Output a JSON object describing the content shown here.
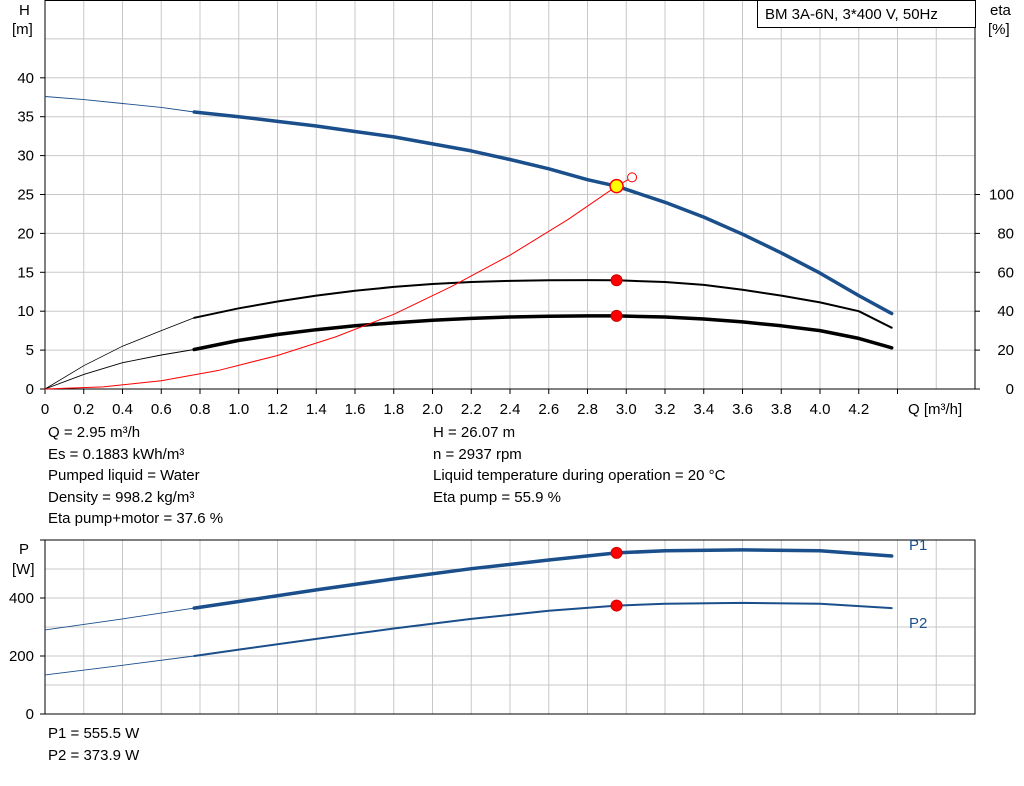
{
  "chart_data": [
    {
      "type": "line",
      "title": "BM 3A-6N, 3*400 V, 50Hz",
      "xlabel": "Q [m³/h]",
      "ylabel_left": [
        "H",
        "[m]"
      ],
      "ylabel_right": [
        "eta",
        "[%]"
      ],
      "xlim": [
        0,
        4.8
      ],
      "ylim_left": [
        0,
        50
      ],
      "ylim_right_mapping": "eta 0-100 % maps to H 0-25 m",
      "x_ticks": [
        "0",
        "0.2",
        "0.4",
        "0.6",
        "0.8",
        "1.0",
        "1.2",
        "1.4",
        "1.6",
        "1.8",
        "2.0",
        "2.2",
        "2.4",
        "2.6",
        "2.8",
        "3.0",
        "3.2",
        "3.4",
        "3.6",
        "3.8",
        "4.0",
        "4.2"
      ],
      "x_tick_values": [
        0,
        0.2,
        0.4,
        0.6,
        0.8,
        1.0,
        1.2,
        1.4,
        1.6,
        1.8,
        2.0,
        2.2,
        2.4,
        2.6,
        2.8,
        3.0,
        3.2,
        3.4,
        3.6,
        3.8,
        4.0,
        4.2
      ],
      "y_left_ticks": [
        "0",
        "5",
        "10",
        "15",
        "20",
        "25",
        "30",
        "35",
        "40"
      ],
      "y_left_tick_values": [
        0,
        5,
        10,
        15,
        20,
        25,
        30,
        35,
        40
      ],
      "y_right_ticks": [
        "0",
        "20",
        "40",
        "60",
        "80",
        "100"
      ],
      "y_right_tick_values": [
        0,
        20,
        40,
        60,
        80,
        100
      ],
      "grid": true,
      "series": [
        {
          "id": "H",
          "color": "#1a4f8b",
          "extrapolated_x": [
            0,
            0.2,
            0.4,
            0.6,
            0.77
          ],
          "extrapolated_y": [
            37.6,
            37.2,
            36.7,
            36.2,
            35.6
          ],
          "x": [
            0.77,
            1.0,
            1.2,
            1.4,
            1.6,
            1.8,
            2.0,
            2.2,
            2.4,
            2.6,
            2.8,
            2.95,
            3.2,
            3.4,
            3.6,
            3.8,
            4.0,
            4.2,
            4.37
          ],
          "y": [
            35.6,
            35.0,
            34.4,
            33.8,
            33.1,
            32.4,
            31.5,
            30.6,
            29.5,
            28.3,
            26.9,
            26.07,
            24.0,
            22.1,
            19.9,
            17.5,
            14.9,
            12.0,
            9.7
          ]
        },
        {
          "id": "eta_pump",
          "color": "#000000",
          "unit": "%",
          "extrapolated_x": [
            0,
            0.2,
            0.4,
            0.6,
            0.77
          ],
          "extrapolated_y": [
            0,
            12,
            22,
            30,
            36.6
          ],
          "x": [
            0.77,
            1.0,
            1.2,
            1.4,
            1.6,
            1.8,
            2.0,
            2.2,
            2.4,
            2.6,
            2.8,
            2.95,
            3.2,
            3.4,
            3.6,
            3.8,
            4.0,
            4.2,
            4.37
          ],
          "y": [
            36.6,
            41.5,
            45.0,
            48.0,
            50.5,
            52.5,
            54.0,
            55.0,
            55.6,
            55.9,
            56.0,
            55.9,
            55.0,
            53.5,
            51.0,
            48.0,
            44.5,
            40.0,
            31.5
          ]
        },
        {
          "id": "eta_pump_motor",
          "color": "#000000",
          "unit": "%",
          "extrapolated_x": [
            0,
            0.2,
            0.4,
            0.6,
            0.77
          ],
          "extrapolated_y": [
            0,
            7.5,
            13.5,
            17.5,
            20.3
          ],
          "x": [
            0.77,
            1.0,
            1.2,
            1.4,
            1.6,
            1.8,
            2.0,
            2.2,
            2.4,
            2.6,
            2.8,
            2.95,
            3.2,
            3.4,
            3.6,
            3.8,
            4.0,
            4.2,
            4.37
          ],
          "y": [
            20.3,
            25.0,
            28.0,
            30.5,
            32.5,
            34.0,
            35.3,
            36.3,
            37.0,
            37.4,
            37.6,
            37.6,
            37.0,
            36.0,
            34.5,
            32.5,
            30.0,
            26.0,
            21.2
          ]
        },
        {
          "id": "system_curve",
          "color": "#ff0000",
          "x": [
            0,
            0.3,
            0.6,
            0.9,
            1.2,
            1.5,
            1.8,
            2.1,
            2.4,
            2.7,
            2.95,
            3.03
          ],
          "y": [
            0,
            0.27,
            1.07,
            2.42,
            4.3,
            6.7,
            9.6,
            13.2,
            17.2,
            21.8,
            26.07,
            27.2
          ]
        }
      ],
      "operating_point": {
        "x": 2.95,
        "H": 26.07,
        "eta_pump": 55.9,
        "eta_pump_motor": 37.6
      }
    },
    {
      "type": "line",
      "xlim": [
        0,
        4.8
      ],
      "ylim": [
        0,
        600
      ],
      "ylabel": [
        "P",
        "[W]"
      ],
      "y_ticks": [
        "0",
        "200",
        "400"
      ],
      "y_tick_values": [
        0,
        200,
        400
      ],
      "grid": true,
      "series": [
        {
          "name": "P1",
          "color": "#1a4f8b",
          "extrapolated_x": [
            0,
            0.4,
            0.77
          ],
          "extrapolated_y": [
            290,
            328,
            365
          ],
          "x": [
            0.77,
            1.0,
            1.4,
            1.8,
            2.2,
            2.6,
            2.95,
            3.2,
            3.6,
            4.0,
            4.37
          ],
          "y": [
            365,
            388,
            428,
            466,
            501,
            531,
            555.5,
            563,
            566,
            563,
            545
          ]
        },
        {
          "name": "P2",
          "color": "#1a4f8b",
          "extrapolated_x": [
            0,
            0.4,
            0.77
          ],
          "extrapolated_y": [
            135,
            168,
            200
          ],
          "x": [
            0.77,
            1.0,
            1.4,
            1.8,
            2.2,
            2.6,
            2.95,
            3.2,
            3.6,
            4.0,
            4.37
          ],
          "y": [
            200,
            222,
            259,
            295,
            328,
            356,
            373.9,
            380,
            383,
            380,
            365
          ]
        }
      ],
      "operating_point": {
        "x": 2.95,
        "P1": 555.5,
        "P2": 373.9
      }
    }
  ],
  "info_left": [
    "Q = 2.95 m³/h",
    "Es = 0.1883 kWh/m³",
    "Pumped liquid = Water",
    "Density = 998.2 kg/m³",
    "Eta pump+motor = 37.6 %"
  ],
  "info_right": [
    "H = 26.07 m",
    "n = 2937 rpm",
    "Liquid temperature during operation = 20 °C",
    "Eta pump = 55.9 %"
  ],
  "power_values": [
    "P1 = 555.5 W",
    "P2 = 373.9 W"
  ]
}
